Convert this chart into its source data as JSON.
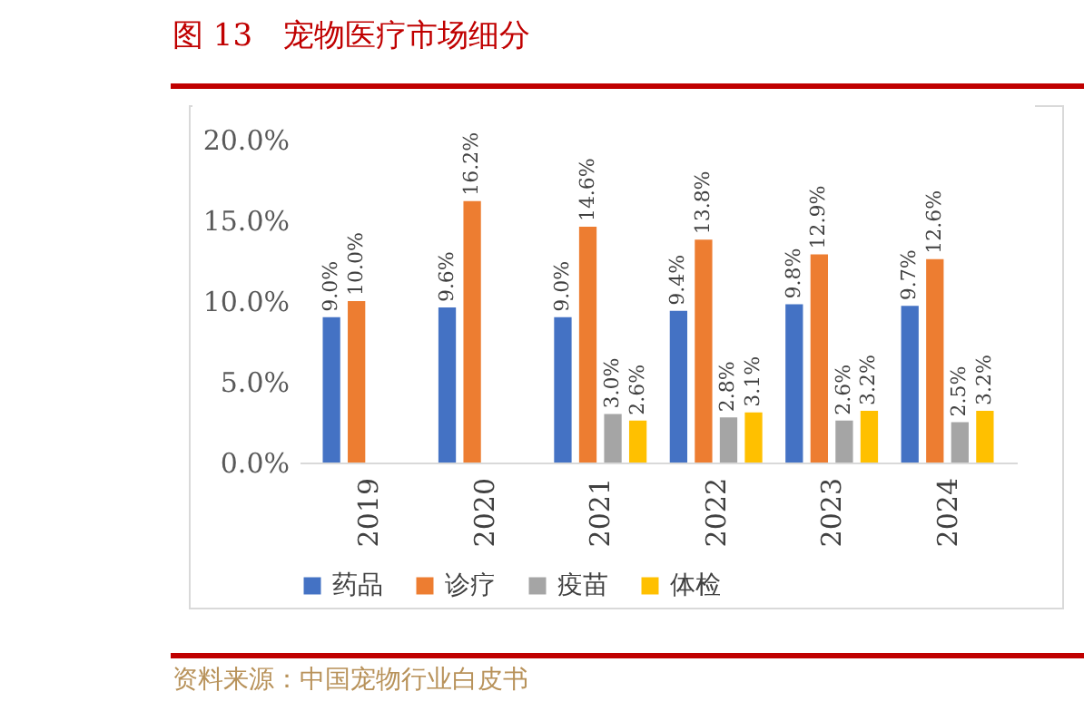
{
  "chart_data": {
    "type": "bar",
    "title": "图 13　宠物医疗市场细分",
    "annotations": [
      "资料来源：中国宠物行业白皮书"
    ],
    "categories": [
      "2019",
      "2020",
      "2021",
      "2022",
      "2023",
      "2024"
    ],
    "series": [
      {
        "name": "药品",
        "color": "#4472c4",
        "values": [
          9.0,
          9.6,
          9.0,
          9.4,
          9.8,
          9.7
        ],
        "value_labels": [
          "9.0%",
          "9.6%",
          "9.0%",
          "9.4%",
          "9.8%",
          "9.7%"
        ]
      },
      {
        "name": "诊疗",
        "color": "#ed7d31",
        "values": [
          10.0,
          16.2,
          14.6,
          13.8,
          12.9,
          12.6
        ],
        "value_labels": [
          "10.0%",
          "16.2%",
          "14.6%",
          "13.8%",
          "12.9%",
          "12.6%"
        ]
      },
      {
        "name": "疫苗",
        "color": "#a5a5a5",
        "values": [
          null,
          null,
          3.0,
          2.8,
          2.6,
          2.5
        ],
        "value_labels": [
          null,
          null,
          "3.0%",
          "2.8%",
          "2.6%",
          "2.5%"
        ]
      },
      {
        "name": "体检",
        "color": "#ffc000",
        "values": [
          null,
          null,
          2.6,
          3.1,
          3.2,
          3.2
        ],
        "value_labels": [
          null,
          null,
          "2.6%",
          "3.1%",
          "3.2%",
          "3.2%"
        ]
      }
    ],
    "ylim": [
      0,
      20
    ],
    "yticks": [
      {
        "value": 0,
        "label": "0.0%"
      },
      {
        "value": 5,
        "label": "5.0%"
      },
      {
        "value": 10,
        "label": "10.0%"
      },
      {
        "value": 15,
        "label": "15.0%"
      },
      {
        "value": 20,
        "label": "20.0%"
      }
    ],
    "grid": false,
    "legend": "bottom"
  }
}
